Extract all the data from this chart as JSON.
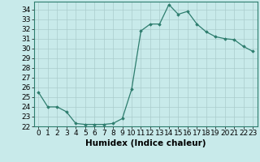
{
  "x": [
    0,
    1,
    2,
    3,
    4,
    5,
    6,
    7,
    8,
    9,
    10,
    11,
    12,
    13,
    14,
    15,
    16,
    17,
    18,
    19,
    20,
    21,
    22,
    23
  ],
  "y": [
    25.5,
    24.0,
    24.0,
    23.5,
    22.3,
    22.2,
    22.2,
    22.2,
    22.3,
    22.8,
    25.8,
    31.8,
    32.5,
    32.5,
    34.5,
    33.5,
    33.8,
    32.5,
    31.7,
    31.2,
    31.0,
    30.9,
    30.2,
    29.7
  ],
  "xlabel": "Humidex (Indice chaleur)",
  "line_color": "#2e7d6e",
  "marker": "D",
  "marker_size": 1.8,
  "bg_color": "#c8eaea",
  "grid_color": "#aacccc",
  "ylim": [
    22,
    34.8
  ],
  "xlim": [
    -0.5,
    23.5
  ],
  "yticks": [
    22,
    23,
    24,
    25,
    26,
    27,
    28,
    29,
    30,
    31,
    32,
    33,
    34
  ],
  "xticks": [
    0,
    1,
    2,
    3,
    4,
    5,
    6,
    7,
    8,
    9,
    10,
    11,
    12,
    13,
    14,
    15,
    16,
    17,
    18,
    19,
    20,
    21,
    22,
    23
  ],
  "tick_fontsize": 6.5,
  "xlabel_fontsize": 7.5
}
